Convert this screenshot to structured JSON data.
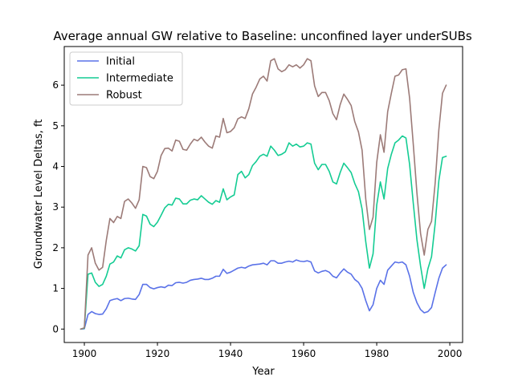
{
  "chart_data": {
    "type": "line",
    "title": "Average annual GW relative to Baseline: unconfined layer underSUBs",
    "xlabel": "Year",
    "ylabel": "Groundwater Level Deltas, ft",
    "xlim": [
      1894.5,
      2003.5
    ],
    "ylim": [
      -0.33,
      6.95
    ],
    "xticks": [
      1900,
      1920,
      1940,
      1960,
      1980,
      2000
    ],
    "yticks": [
      0,
      1,
      2,
      3,
      4,
      5,
      6
    ],
    "grid": false,
    "legend_position": "top-left",
    "x": [
      1899,
      1900,
      1901,
      1902,
      1903,
      1904,
      1905,
      1906,
      1907,
      1908,
      1909,
      1910,
      1911,
      1912,
      1913,
      1914,
      1915,
      1916,
      1917,
      1918,
      1919,
      1920,
      1921,
      1922,
      1923,
      1924,
      1925,
      1926,
      1927,
      1928,
      1929,
      1930,
      1931,
      1932,
      1933,
      1934,
      1935,
      1936,
      1937,
      1938,
      1939,
      1940,
      1941,
      1942,
      1943,
      1944,
      1945,
      1946,
      1947,
      1948,
      1949,
      1950,
      1951,
      1952,
      1953,
      1954,
      1955,
      1956,
      1957,
      1958,
      1959,
      1960,
      1961,
      1962,
      1963,
      1964,
      1965,
      1966,
      1967,
      1968,
      1969,
      1970,
      1971,
      1972,
      1973,
      1974,
      1975,
      1976,
      1977,
      1978,
      1979,
      1980,
      1981,
      1982,
      1983,
      1984,
      1985,
      1986,
      1987,
      1988,
      1989,
      1990,
      1991,
      1992,
      1993,
      1994,
      1995,
      1996,
      1997,
      1998,
      1999
    ],
    "series": [
      {
        "name": "Initial",
        "color": "#5a72e8",
        "values": [
          0.0,
          0.01,
          0.36,
          0.43,
          0.38,
          0.36,
          0.37,
          0.5,
          0.7,
          0.73,
          0.75,
          0.7,
          0.75,
          0.76,
          0.74,
          0.73,
          0.85,
          1.1,
          1.1,
          1.02,
          0.99,
          1.02,
          1.04,
          1.02,
          1.08,
          1.07,
          1.14,
          1.15,
          1.13,
          1.15,
          1.2,
          1.22,
          1.23,
          1.25,
          1.22,
          1.22,
          1.25,
          1.3,
          1.3,
          1.47,
          1.37,
          1.4,
          1.45,
          1.5,
          1.52,
          1.5,
          1.55,
          1.58,
          1.59,
          1.6,
          1.62,
          1.58,
          1.68,
          1.68,
          1.62,
          1.62,
          1.65,
          1.67,
          1.65,
          1.7,
          1.67,
          1.66,
          1.68,
          1.65,
          1.43,
          1.38,
          1.42,
          1.44,
          1.4,
          1.3,
          1.26,
          1.38,
          1.48,
          1.4,
          1.35,
          1.22,
          1.15,
          1.0,
          0.7,
          0.45,
          0.6,
          1.0,
          1.2,
          1.1,
          1.45,
          1.55,
          1.65,
          1.63,
          1.65,
          1.58,
          1.3,
          0.9,
          0.65,
          0.48,
          0.4,
          0.43,
          0.53,
          0.9,
          1.25,
          1.5,
          1.58
        ]
      },
      {
        "name": "Intermediate",
        "color": "#14cc93",
        "values": [
          0.0,
          0.02,
          1.35,
          1.38,
          1.15,
          1.05,
          1.1,
          1.3,
          1.6,
          1.65,
          1.8,
          1.75,
          1.95,
          2.0,
          1.97,
          1.92,
          2.05,
          2.82,
          2.78,
          2.58,
          2.52,
          2.63,
          2.8,
          2.98,
          3.07,
          3.05,
          3.22,
          3.2,
          3.08,
          3.08,
          3.17,
          3.2,
          3.18,
          3.28,
          3.2,
          3.12,
          3.07,
          3.16,
          3.12,
          3.45,
          3.18,
          3.25,
          3.3,
          3.8,
          3.88,
          3.72,
          3.8,
          4.02,
          4.12,
          4.25,
          4.3,
          4.25,
          4.5,
          4.4,
          4.27,
          4.3,
          4.36,
          4.58,
          4.5,
          4.55,
          4.48,
          4.5,
          4.58,
          4.55,
          4.08,
          3.92,
          4.05,
          4.05,
          3.88,
          3.62,
          3.57,
          3.85,
          4.08,
          3.97,
          3.85,
          3.58,
          3.38,
          2.95,
          2.15,
          1.5,
          1.85,
          3.05,
          3.62,
          3.2,
          3.95,
          4.3,
          4.58,
          4.65,
          4.75,
          4.7,
          4.05,
          3.1,
          2.2,
          1.55,
          1.0,
          1.48,
          1.78,
          2.6,
          3.65,
          4.22,
          4.25
        ]
      },
      {
        "name": "Robust",
        "color": "#9c7b78",
        "values": [
          0.0,
          0.03,
          1.82,
          2.0,
          1.62,
          1.45,
          1.52,
          2.18,
          2.72,
          2.62,
          2.77,
          2.72,
          3.14,
          3.2,
          3.1,
          2.97,
          3.18,
          4.0,
          3.97,
          3.75,
          3.7,
          3.88,
          4.27,
          4.44,
          4.45,
          4.38,
          4.65,
          4.62,
          4.42,
          4.4,
          4.55,
          4.67,
          4.63,
          4.72,
          4.6,
          4.5,
          4.45,
          4.75,
          4.72,
          5.18,
          4.83,
          4.86,
          4.95,
          5.17,
          5.22,
          5.18,
          5.42,
          5.78,
          5.95,
          6.15,
          6.22,
          6.1,
          6.6,
          6.65,
          6.4,
          6.33,
          6.38,
          6.5,
          6.45,
          6.5,
          6.42,
          6.5,
          6.65,
          6.6,
          5.98,
          5.72,
          5.82,
          5.82,
          5.62,
          5.3,
          5.15,
          5.52,
          5.78,
          5.65,
          5.5,
          5.1,
          4.85,
          4.4,
          3.2,
          2.45,
          2.75,
          4.1,
          4.78,
          4.35,
          5.35,
          5.8,
          6.22,
          6.25,
          6.38,
          6.4,
          5.68,
          4.55,
          3.35,
          2.35,
          1.82,
          2.45,
          2.65,
          3.6,
          4.9,
          5.8,
          6.0
        ]
      }
    ]
  }
}
